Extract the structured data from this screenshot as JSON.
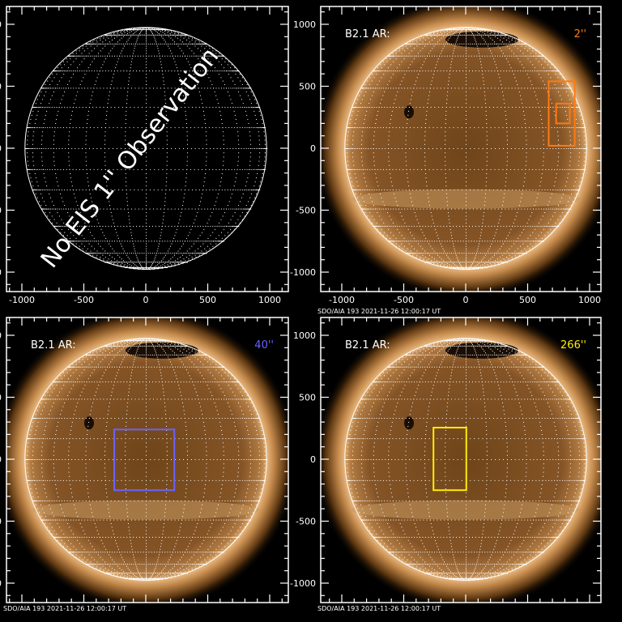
{
  "caption": "SDO/AIA 193   2021-11-26 12:00:17 UT",
  "colors": {
    "frame": "#ffffff",
    "sun_core": "#8a5a2a",
    "sun_edge": "#f0c890"
  },
  "tick_labels": [
    "-1000",
    "-500",
    "0",
    "500",
    "1000"
  ],
  "panels": [
    {
      "id": "top-left",
      "has_sun": false,
      "message": "No EIS 1'' Observation",
      "show_x_labels": true,
      "show_caption": false
    },
    {
      "id": "top-right",
      "has_sun": true,
      "label": "B2.1  AR:",
      "value": "2''",
      "color": "#ff7a10",
      "show_x_labels": true,
      "show_caption": true,
      "boxes": [
        {
          "x": [
            670,
            880
          ],
          "y": [
            540,
            20
          ]
        },
        {
          "x": [
            730,
            840
          ],
          "y": [
            360,
            200
          ]
        }
      ]
    },
    {
      "id": "bottom-left",
      "has_sun": true,
      "label": "B2.1  AR:",
      "value": "40''",
      "color": "#6a62ff",
      "show_x_labels": false,
      "show_caption": true,
      "boxes": [
        {
          "x": [
            -255,
            230
          ],
          "y": [
            240,
            -250
          ]
        }
      ]
    },
    {
      "id": "bottom-right",
      "has_sun": true,
      "label": "B2.1  AR:",
      "value": "266''",
      "color": "#ffee00",
      "show_x_labels": false,
      "show_caption": true,
      "boxes": [
        {
          "x": [
            -260,
            5
          ],
          "y": [
            255,
            -250
          ]
        }
      ]
    }
  ]
}
